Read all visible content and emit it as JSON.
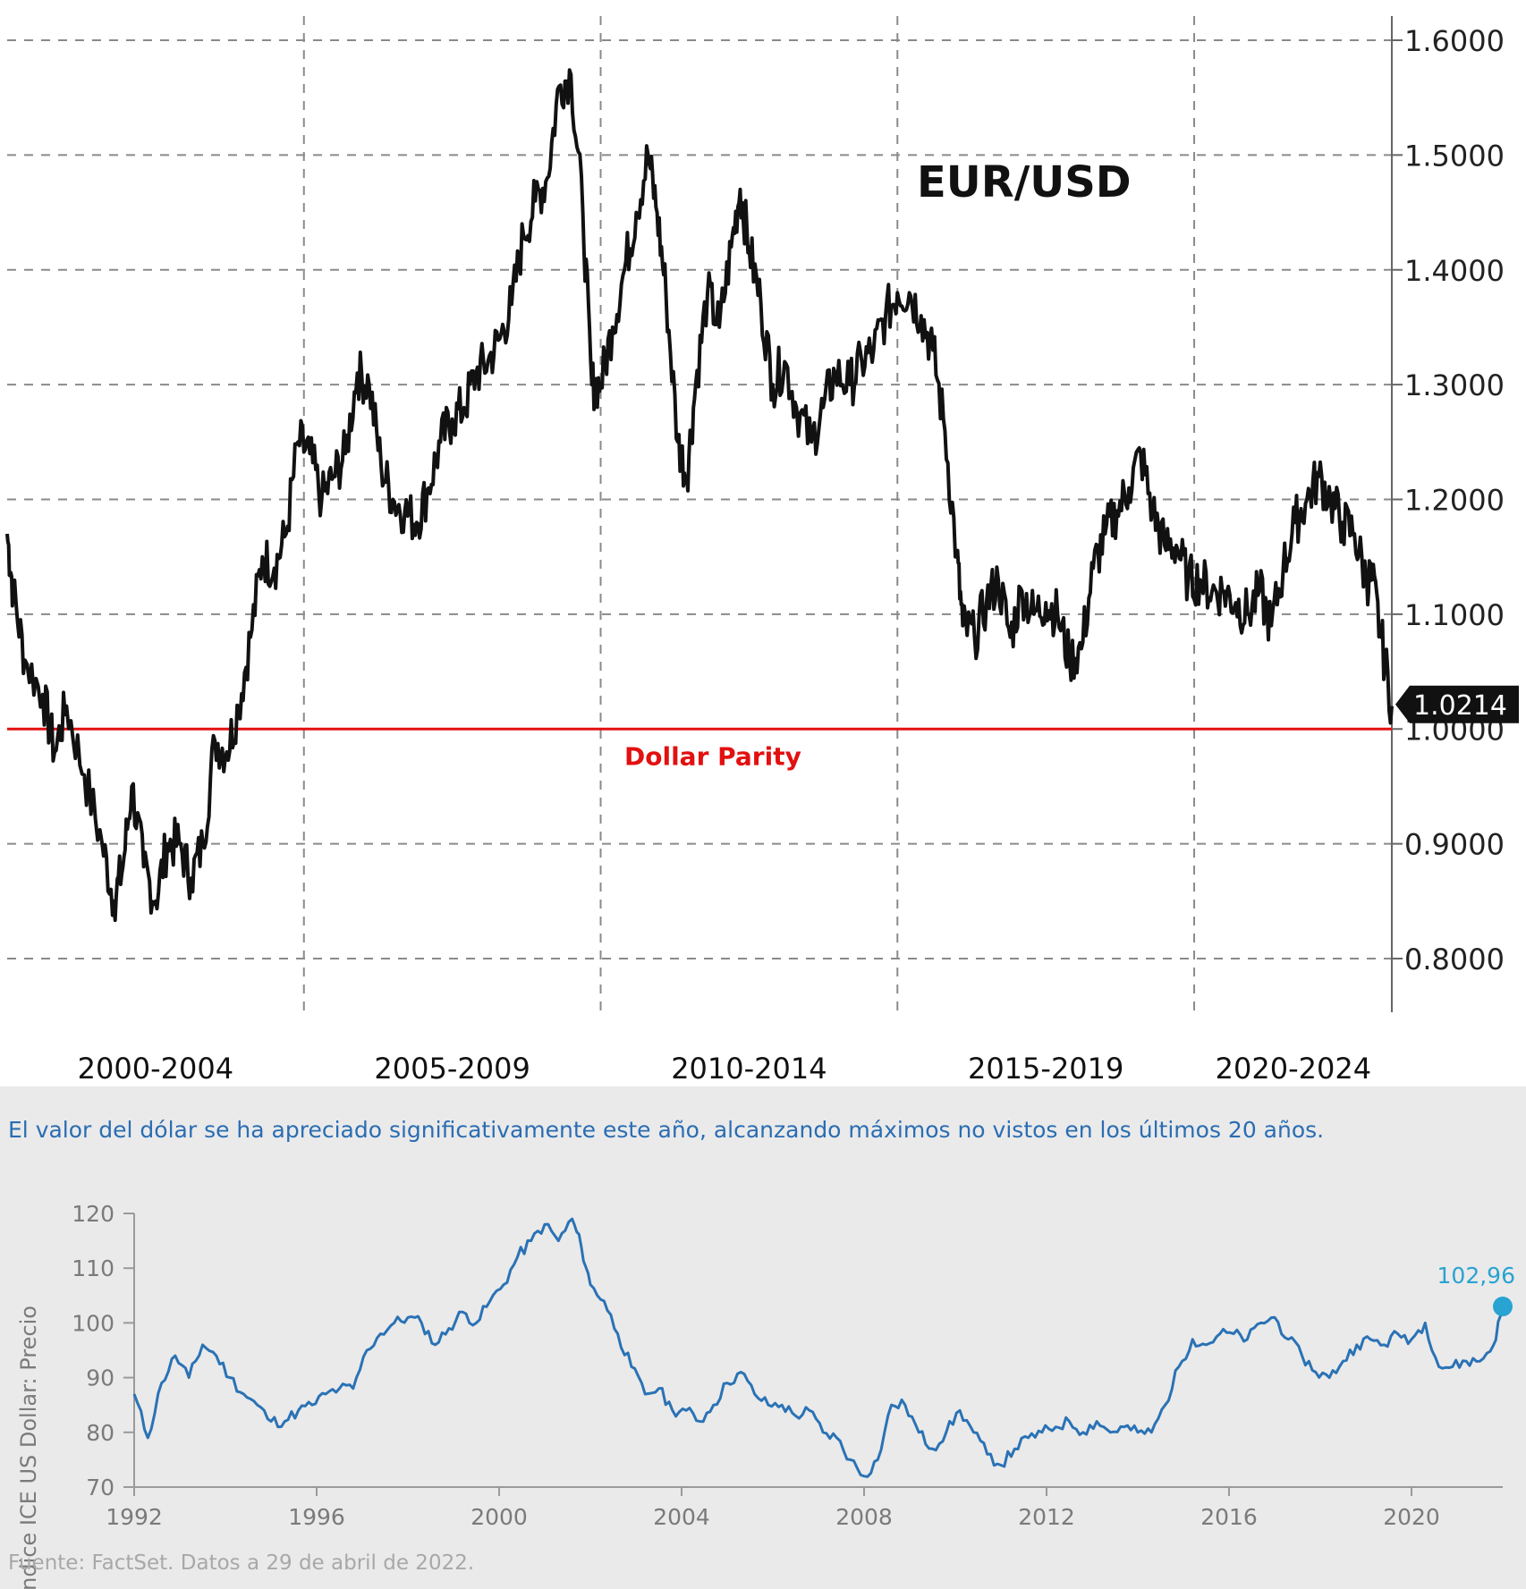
{
  "chart_data": [
    {
      "type": "line",
      "title": "EUR/USD",
      "xlabel": "",
      "ylabel": "",
      "x_range": [
        1999.0,
        2022.33
      ],
      "ylim": [
        0.75,
        1.62
      ],
      "yticks": [
        "1.6000",
        "1.5000",
        "1.4000",
        "1.3000",
        "1.2000",
        "1.1000",
        "1.0000",
        "0.9000",
        "0.8000"
      ],
      "ytick_values": [
        1.6,
        1.5,
        1.4,
        1.3,
        1.2,
        1.1,
        1.0,
        0.9,
        0.8
      ],
      "period_labels": [
        "2000-2004",
        "2005-2009",
        "2010-2014",
        "2015-2019",
        "2020-2024"
      ],
      "period_label_years": [
        2001.5,
        2006.5,
        2011.5,
        2016.5,
        2020.67
      ],
      "vertical_gridline_years": [
        2004,
        2009,
        2014,
        2019
      ],
      "grid": "dashed",
      "reference_line": {
        "value": 1.0,
        "label": "Dollar Parity",
        "color": "#e31010"
      },
      "last_value_label": "1.0214",
      "series": [
        {
          "color": "#111111",
          "x": [
            1999.0,
            1999.1,
            1999.3,
            1999.6,
            1999.8,
            2000.0,
            2000.3,
            2000.6,
            2000.8,
            2000.95,
            2001.1,
            2001.3,
            2001.5,
            2001.7,
            2001.9,
            2002.1,
            2002.3,
            2002.5,
            2002.7,
            2002.9,
            2003.1,
            2003.3,
            2003.5,
            2003.7,
            2003.9,
            2004.1,
            2004.3,
            2004.5,
            2004.7,
            2004.9,
            2005.1,
            2005.3,
            2005.5,
            2005.7,
            2005.9,
            2006.1,
            2006.3,
            2006.5,
            2006.7,
            2006.9,
            2007.1,
            2007.3,
            2007.5,
            2007.7,
            2007.9,
            2008.1,
            2008.3,
            2008.5,
            2008.7,
            2008.85,
            2009.0,
            2009.2,
            2009.4,
            2009.6,
            2009.8,
            2009.95,
            2010.1,
            2010.3,
            2010.45,
            2010.6,
            2010.8,
            2011.0,
            2011.2,
            2011.35,
            2011.5,
            2011.7,
            2011.9,
            2012.1,
            2012.3,
            2012.55,
            2012.75,
            2012.95,
            2013.2,
            2013.4,
            2013.6,
            2013.8,
            2014.0,
            2014.2,
            2014.4,
            2014.6,
            2014.8,
            2015.0,
            2015.1,
            2015.3,
            2015.5,
            2015.7,
            2015.9,
            2016.1,
            2016.3,
            2016.5,
            2016.7,
            2016.9,
            2017.1,
            2017.3,
            2017.5,
            2017.7,
            2017.9,
            2018.1,
            2018.3,
            2018.5,
            2018.7,
            2018.9,
            2019.1,
            2019.3,
            2019.5,
            2019.7,
            2019.9,
            2020.1,
            2020.3,
            2020.5,
            2020.7,
            2020.9,
            2021.1,
            2021.3,
            2021.5,
            2021.7,
            2021.9,
            2022.0,
            2022.15,
            2022.33
          ],
          "values": [
            1.17,
            1.12,
            1.06,
            1.03,
            0.98,
            1.02,
            0.96,
            0.9,
            0.85,
            0.88,
            0.95,
            0.88,
            0.85,
            0.9,
            0.9,
            0.87,
            0.9,
            0.99,
            0.98,
            1.02,
            1.08,
            1.15,
            1.14,
            1.17,
            1.25,
            1.24,
            1.2,
            1.22,
            1.24,
            1.31,
            1.3,
            1.23,
            1.2,
            1.19,
            1.18,
            1.21,
            1.25,
            1.27,
            1.28,
            1.31,
            1.32,
            1.34,
            1.37,
            1.43,
            1.46,
            1.48,
            1.56,
            1.57,
            1.45,
            1.3,
            1.3,
            1.35,
            1.4,
            1.45,
            1.5,
            1.45,
            1.38,
            1.25,
            1.22,
            1.3,
            1.38,
            1.35,
            1.42,
            1.47,
            1.42,
            1.37,
            1.3,
            1.32,
            1.28,
            1.25,
            1.28,
            1.31,
            1.3,
            1.32,
            1.33,
            1.36,
            1.38,
            1.38,
            1.36,
            1.33,
            1.26,
            1.15,
            1.09,
            1.08,
            1.11,
            1.13,
            1.08,
            1.12,
            1.1,
            1.11,
            1.1,
            1.06,
            1.07,
            1.14,
            1.17,
            1.19,
            1.21,
            1.24,
            1.19,
            1.16,
            1.16,
            1.13,
            1.13,
            1.12,
            1.12,
            1.11,
            1.1,
            1.12,
            1.09,
            1.14,
            1.18,
            1.2,
            1.22,
            1.2,
            1.18,
            1.17,
            1.13,
            1.13,
            1.08,
            1.02
          ]
        }
      ]
    },
    {
      "type": "line",
      "title": "El valor del dólar se ha apreciado significativamente este año, alcanzando máximos no vistos en los últimos 20 años.",
      "xlabel": "",
      "ylabel": "Índice ICE US Dollar: Precio",
      "x_range": [
        1992.0,
        2022.0
      ],
      "ylim": [
        70,
        120
      ],
      "yticks": [
        "120",
        "110",
        "100",
        "90",
        "80",
        "70"
      ],
      "ytick_values": [
        120,
        110,
        100,
        90,
        80,
        70
      ],
      "xticks": [
        "1992",
        "1996",
        "2000",
        "2004",
        "2008",
        "2012",
        "2016",
        "2020"
      ],
      "xtick_values": [
        1992,
        1996,
        2000,
        2004,
        2008,
        2012,
        2016,
        2020
      ],
      "grid": "none",
      "last_value_label": "102,96",
      "series": [
        {
          "color": "#2a72b5",
          "end_marker_color": "#29a3d1",
          "x": [
            1992.0,
            1992.3,
            1992.6,
            1992.9,
            1993.2,
            1993.5,
            1993.8,
            1994.1,
            1994.4,
            1994.7,
            1995.0,
            1995.3,
            1995.6,
            1995.9,
            1996.2,
            1996.5,
            1996.8,
            1997.1,
            1997.4,
            1997.7,
            1998.0,
            1998.3,
            1998.6,
            1998.9,
            1999.2,
            1999.5,
            1999.8,
            2000.1,
            2000.4,
            2000.7,
            2001.0,
            2001.3,
            2001.6,
            2001.8,
            2002.0,
            2002.3,
            2002.6,
            2002.9,
            2003.2,
            2003.5,
            2003.8,
            2004.1,
            2004.4,
            2004.7,
            2005.0,
            2005.3,
            2005.6,
            2005.9,
            2006.2,
            2006.5,
            2006.8,
            2007.1,
            2007.4,
            2007.7,
            2008.0,
            2008.3,
            2008.6,
            2008.9,
            2009.2,
            2009.5,
            2009.8,
            2010.1,
            2010.4,
            2010.7,
            2011.0,
            2011.3,
            2011.6,
            2011.9,
            2012.2,
            2012.5,
            2012.8,
            2013.1,
            2013.4,
            2013.7,
            2014.0,
            2014.3,
            2014.6,
            2014.9,
            2015.2,
            2015.5,
            2015.8,
            2016.1,
            2016.4,
            2016.7,
            2017.0,
            2017.3,
            2017.6,
            2017.9,
            2018.2,
            2018.5,
            2018.8,
            2019.1,
            2019.4,
            2019.7,
            2020.0,
            2020.3,
            2020.6,
            2020.9,
            2021.2,
            2021.5,
            2021.8,
            2022.0
          ],
          "values": [
            87,
            79,
            89,
            94,
            90,
            96,
            94,
            90,
            87,
            85,
            82,
            82,
            84,
            85,
            87,
            88,
            88,
            95,
            98,
            100,
            101,
            100,
            96,
            99,
            102,
            100,
            104,
            107,
            112,
            115,
            118,
            115,
            119,
            114,
            107,
            104,
            98,
            92,
            87,
            88,
            84,
            84,
            82,
            85,
            89,
            91,
            87,
            85,
            85,
            83,
            84,
            80,
            79,
            75,
            72,
            75,
            85,
            85,
            80,
            77,
            80,
            84,
            80,
            76,
            74,
            77,
            79,
            80,
            81,
            82,
            80,
            82,
            80,
            81,
            80,
            80,
            85,
            92,
            97,
            96,
            98,
            98,
            97,
            100,
            101,
            97,
            94,
            91,
            90,
            93,
            96,
            97,
            96,
            98,
            97,
            100,
            92,
            92,
            93,
            93,
            96,
            103
          ]
        }
      ]
    }
  ],
  "footnote": "Fuente: FactSet. Datos a 29 de abril de 2022."
}
